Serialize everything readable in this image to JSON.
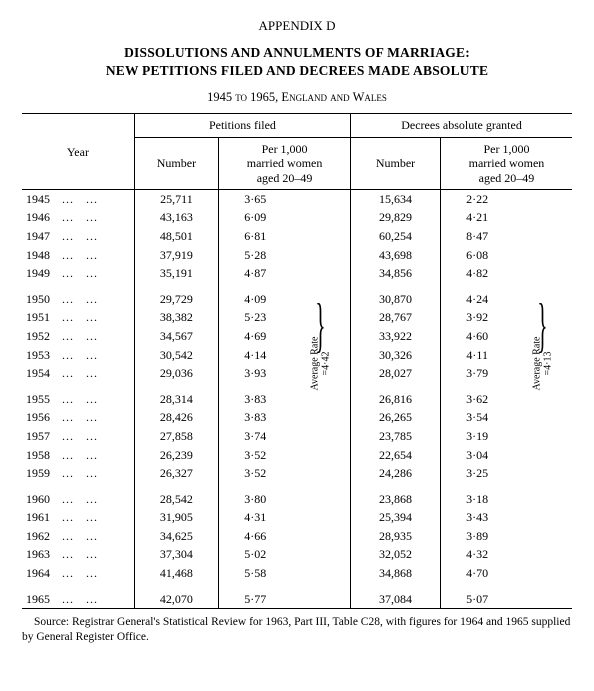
{
  "appendix_label": "APPENDIX D",
  "title_line1": "DISSOLUTIONS AND ANNULMENTS OF MARRIAGE:",
  "title_line2": "NEW PETITIONS FILED AND DECREES MADE ABSOLUTE",
  "subtitle": "1945 to 1965, England and Wales",
  "headers": {
    "year": "Year",
    "petitions": "Petitions filed",
    "decrees": "Decrees absolute granted",
    "number": "Number",
    "per1000a": "Per 1,000",
    "per1000b": "married women",
    "per1000c": "aged 20–49"
  },
  "groups": [
    {
      "years": [
        {
          "y": "1945",
          "pn": "25,711",
          "pr": "3·65",
          "dn": "15,634",
          "dr": "2·22"
        },
        {
          "y": "1946",
          "pn": "43,163",
          "pr": "6·09",
          "dn": "29,829",
          "dr": "4·21"
        },
        {
          "y": "1947",
          "pn": "48,501",
          "pr": "6·81",
          "dn": "60,254",
          "dr": "8·47"
        },
        {
          "y": "1948",
          "pn": "37,919",
          "pr": "5·28",
          "dn": "43,698",
          "dr": "6·08"
        },
        {
          "y": "1949",
          "pn": "35,191",
          "pr": "4·87",
          "dn": "34,856",
          "dr": "4·82"
        }
      ],
      "avg_p": null,
      "avg_d": null
    },
    {
      "years": [
        {
          "y": "1950",
          "pn": "29,729",
          "pr": "4·09",
          "dn": "30,870",
          "dr": "4·24"
        },
        {
          "y": "1951",
          "pn": "38,382",
          "pr": "5·23",
          "dn": "28,767",
          "dr": "3·92"
        },
        {
          "y": "1952",
          "pn": "34,567",
          "pr": "4·69",
          "dn": "33,922",
          "dr": "4·60"
        },
        {
          "y": "1953",
          "pn": "30,542",
          "pr": "4·14",
          "dn": "30,326",
          "dr": "4·11"
        },
        {
          "y": "1954",
          "pn": "29,036",
          "pr": "3·93",
          "dn": "28,027",
          "dr": "3·79"
        }
      ],
      "avg_p": "=4·42",
      "avg_d": "=4·13",
      "avg_label": "Average Rate"
    },
    {
      "years": [
        {
          "y": "1955",
          "pn": "28,314",
          "pr": "3·83",
          "dn": "26,816",
          "dr": "3·62"
        },
        {
          "y": "1956",
          "pn": "28,426",
          "pr": "3·83",
          "dn": "26,265",
          "dr": "3·54"
        },
        {
          "y": "1957",
          "pn": "27,858",
          "pr": "3·74",
          "dn": "23,785",
          "dr": "3·19"
        },
        {
          "y": "1958",
          "pn": "26,239",
          "pr": "3·52",
          "dn": "22,654",
          "dr": "3·04"
        },
        {
          "y": "1959",
          "pn": "26,327",
          "pr": "3·52",
          "dn": "24,286",
          "dr": "3·25"
        }
      ],
      "avg_p": null,
      "avg_d": null
    },
    {
      "years": [
        {
          "y": "1960",
          "pn": "28,542",
          "pr": "3·80",
          "dn": "23,868",
          "dr": "3·18"
        },
        {
          "y": "1961",
          "pn": "31,905",
          "pr": "4·31",
          "dn": "25,394",
          "dr": "3·43"
        },
        {
          "y": "1962",
          "pn": "34,625",
          "pr": "4·66",
          "dn": "28,935",
          "dr": "3·89"
        },
        {
          "y": "1963",
          "pn": "37,304",
          "pr": "5·02",
          "dn": "32,052",
          "dr": "4·32"
        },
        {
          "y": "1964",
          "pn": "41,468",
          "pr": "5·58",
          "dn": "34,868",
          "dr": "4·70"
        }
      ],
      "avg_p": null,
      "avg_d": null
    },
    {
      "years": [
        {
          "y": "1965",
          "pn": "42,070",
          "pr": "5·77",
          "dn": "37,084",
          "dr": "5·07"
        }
      ],
      "avg_p": null,
      "avg_d": null
    }
  ],
  "source": "Source:  Registrar General's Statistical Review for 1963, Part III, Table C28, with figures for 1964 and 1965 supplied by General Register Office.",
  "style": {
    "col_widths_pct": [
      20,
      15,
      13,
      5,
      16,
      13,
      5
    ],
    "font_family": "Times New Roman",
    "background": "#ffffff",
    "text_color": "#000000",
    "rule_color": "#000000"
  }
}
